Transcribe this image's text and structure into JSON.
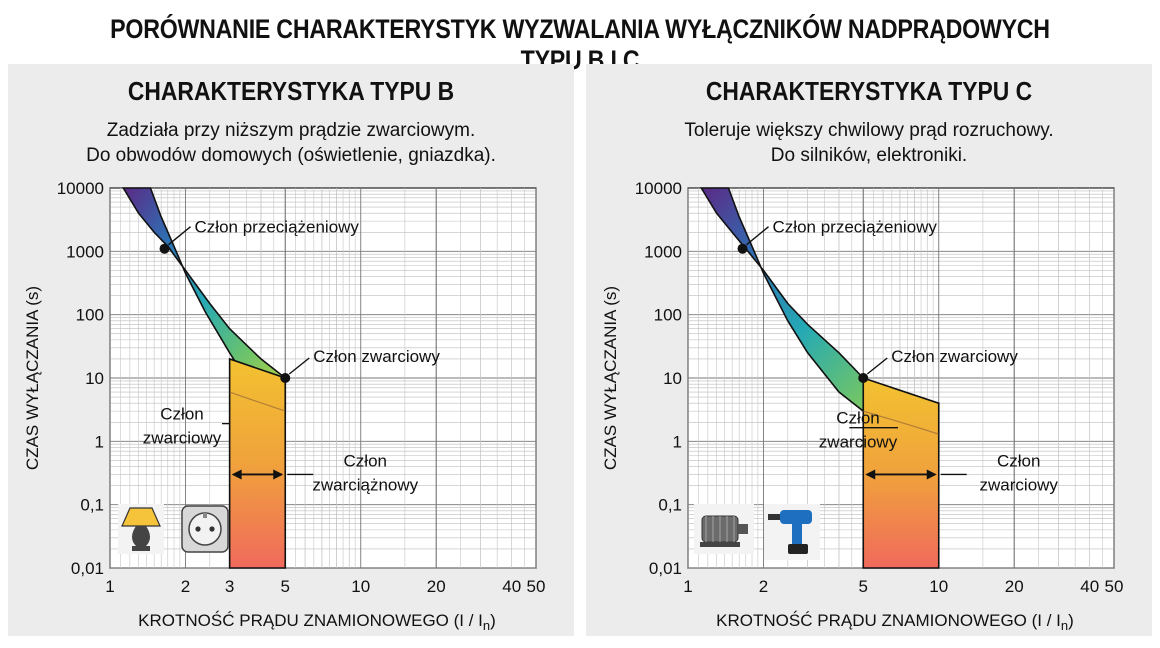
{
  "page": {
    "title": "PORÓWNANIE CHARAKTERYSTYK WYZWALANIA WYŁĄCZNIKÓW NADPRĄDOWYCH TYPU B I C"
  },
  "colors": {
    "panel_bg": "#ececec",
    "curve_gradient": [
      "#5b2a86",
      "#2f6fb3",
      "#25a9b5",
      "#6cc36b",
      "#c9d63c"
    ],
    "short_circuit_fill": [
      "#f2c230",
      "#f0a23c",
      "#f06a5c"
    ],
    "outline": "#111111"
  },
  "panels": [
    {
      "title": "CHARAKTERYSTYKA TYPU B",
      "subtitle_line1": "Zadziała przy niższym prądzie zwarciowym.",
      "subtitle_line2": "Do obwodów domowych (oświetlenie, gniazdka).",
      "ylabel": "CZAS WYŁĄCZANIA (s)",
      "xlabel_main": "KROTNOŚĆ PRĄDU ZNAMIONOWEGO (I / I",
      "xlabel_sub": "n",
      "xlabel_end": ")",
      "annotations": {
        "overload": "Człon przeciążeniowy",
        "short_right": "Człon zwarciowy",
        "short_left_1": "Człon",
        "short_left_2": "zwarciowy",
        "range_1": "Człon",
        "range_2": "zwarciążnowy"
      },
      "icons": [
        "lamp-icon",
        "socket-icon"
      ]
    },
    {
      "title": "CHARAKTERYSTYKA TYPU C",
      "subtitle_line1": "Toleruje większy chwilowy prąd rozruchowy.",
      "subtitle_line2": "Do silników, elektroniki.",
      "ylabel": "CZAS WYŁĄCZANIA (s)",
      "xlabel_main": "KROTNOŚĆ PRĄDU ZNAMIONOWEGO (I / I",
      "xlabel_sub": "n",
      "xlabel_end": ")",
      "annotations": {
        "overload": "Człon przeciążeniowy",
        "short_right": "Człon zwarciowy",
        "short_left_1": "Człon",
        "short_left_2": "zwarciowy",
        "range_1": "Człon",
        "range_2": "zwarciowy"
      },
      "icons": [
        "motor-icon",
        "drill-icon"
      ]
    }
  ],
  "chart_data": [
    {
      "type": "area",
      "title": "CHARAKTERYSTYKA TYPU B",
      "xlabel": "KROTNOŚĆ PRĄDU ZNAMIONOWEGO (I / In)",
      "ylabel": "CZAS WYŁĄCZANIA (s)",
      "xscale": "log",
      "yscale": "log",
      "xlim": [
        1,
        50
      ],
      "ylim": [
        0.01,
        10000
      ],
      "x_ticks": [
        "1",
        "2",
        "3",
        "5",
        "10",
        "20",
        "40",
        "50"
      ],
      "x_tick_values": [
        1,
        2,
        3,
        5,
        10,
        20,
        40,
        50
      ],
      "y_ticks": [
        "10000",
        "1000",
        "100",
        "10",
        "1",
        "0,1",
        "0,01"
      ],
      "y_tick_values": [
        10000,
        1000,
        100,
        10,
        1,
        0.1,
        0.01
      ],
      "grid": true,
      "series": [
        {
          "upper_curve": {
            "x": [
              1.13,
              1.3,
              1.5,
              1.7,
              2.0,
              2.5,
              3.0,
              4.0,
              5.0
            ],
            "y": [
              10000,
              4000,
              2000,
              1200,
              500,
              150,
              60,
              20,
              10
            ]
          },
          "lower_curve": {
            "x": [
              1.45,
              1.6,
              1.8,
              2.0,
              2.4,
              3.0,
              3.6,
              4.2,
              5.0
            ],
            "y": [
              10000,
              3500,
              1200,
              450,
              110,
              25,
              8,
              4.5,
              3
            ]
          }
        }
      ],
      "short_circuit_band": {
        "x_from": 3,
        "x_to": 5,
        "y_from": 0.01,
        "y_top": 10
      },
      "markers": [
        {
          "name": "overload",
          "x": 1.65,
          "y": 1100
        },
        {
          "name": "short",
          "x": 5,
          "y": 10
        }
      ]
    },
    {
      "type": "area",
      "title": "CHARAKTERYSTYKA TYPU C",
      "xlabel": "KROTNOŚĆ PRĄDU ZNAMIONOWEGO (I / In)",
      "ylabel": "CZAS WYŁĄCZANIA (s)",
      "xscale": "log",
      "yscale": "log",
      "xlim": [
        1,
        50
      ],
      "ylim": [
        0.01,
        10000
      ],
      "x_ticks": [
        "1",
        "2",
        "5",
        "10",
        "20",
        "40",
        "50"
      ],
      "x_tick_values": [
        1,
        2,
        5,
        10,
        20,
        40,
        50
      ],
      "y_ticks": [
        "10000",
        "1000",
        "100",
        "10",
        "1",
        "0,1",
        "0,01"
      ],
      "y_tick_values": [
        10000,
        1000,
        100,
        10,
        1,
        0.1,
        0.01
      ],
      "grid": true,
      "series": [
        {
          "upper_curve": {
            "x": [
              1.13,
              1.3,
              1.5,
              1.7,
              2.0,
              2.5,
              3.0,
              4.0,
              5.0,
              7.0,
              10.0
            ],
            "y": [
              10000,
              4000,
              2000,
              1100,
              500,
              150,
              70,
              25,
              10,
              6,
              4
            ]
          },
          "lower_curve": {
            "x": [
              1.45,
              1.6,
              1.8,
              2.0,
              2.5,
              3.0,
              4.0,
              5.0,
              7.0,
              10.0
            ],
            "y": [
              10000,
              3500,
              1200,
              450,
              80,
              25,
              6,
              3,
              2,
              1.3
            ]
          }
        }
      ],
      "short_circuit_band": {
        "x_from": 5,
        "x_to": 10,
        "y_from": 0.01,
        "y_top": 4
      },
      "markers": [
        {
          "name": "overload",
          "x": 1.65,
          "y": 1100
        },
        {
          "name": "short",
          "x": 5,
          "y": 10
        }
      ]
    }
  ]
}
